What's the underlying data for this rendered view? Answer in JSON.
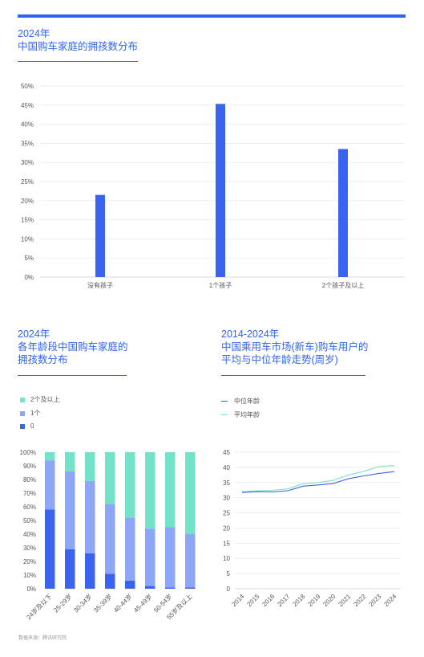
{
  "colors": {
    "accent": "#2f63f2",
    "seg_0": "#3a64f0",
    "seg_1": "#8ea6f7",
    "seg_2plus": "#72e3c9",
    "median": "#3d63e6",
    "average": "#7fe3c6",
    "grid": "#e6e6e6",
    "tick": "#555555"
  },
  "source_text": "数据来源：腾讯研究院",
  "chart_data": [
    {
      "type": "bar",
      "title_year": "2024年",
      "title": "中国购车家庭的拥孩数分布",
      "categories": [
        "没有孩子",
        "1个孩子",
        "2个孩子及以上"
      ],
      "values": [
        21.5,
        45.3,
        33.5
      ],
      "ylim": [
        0,
        50
      ],
      "yticks": [
        "0%",
        "5%",
        "10%",
        "15%",
        "20%",
        "25%",
        "30%",
        "35%",
        "40%",
        "45%",
        "50%"
      ],
      "grid": true
    },
    {
      "type": "bar",
      "stacked": true,
      "title_year": "2024年",
      "title_lines": [
        "各年龄段中国购车家庭的",
        "拥孩数分布"
      ],
      "categories": [
        "24岁及以下",
        "25-29岁",
        "30-34岁",
        "35-39岁",
        "40-44岁",
        "45-49岁",
        "50-54岁",
        "55岁及以上"
      ],
      "legend": [
        "2个及以上",
        "1个",
        "0"
      ],
      "series": [
        {
          "name": "0",
          "values": [
            58,
            29,
            26,
            11,
            6,
            2,
            1,
            1
          ]
        },
        {
          "name": "1个",
          "values": [
            36,
            57,
            53,
            51,
            46,
            42,
            44,
            39
          ]
        },
        {
          "name": "2个及以上",
          "values": [
            6,
            14,
            21,
            38,
            48,
            56,
            55,
            60
          ]
        }
      ],
      "ylim": [
        0,
        100
      ],
      "yticks": [
        "0%",
        "10%",
        "20%",
        "30%",
        "40%",
        "50%",
        "60%",
        "70%",
        "80%",
        "90%",
        "100%"
      ]
    },
    {
      "type": "line",
      "title_year": "2014-2024年",
      "title_lines": [
        "中国乘用车市场(新车)购车用户的",
        "平均与中位年龄走势(周岁)"
      ],
      "x": [
        "2014",
        "2015",
        "2016",
        "2017",
        "2018",
        "2019",
        "2020",
        "2021",
        "2022",
        "2023",
        "2024"
      ],
      "series": [
        {
          "name": "中位年龄",
          "values": [
            31.7,
            32.0,
            31.9,
            32.3,
            33.8,
            34.2,
            34.7,
            36.3,
            37.2,
            38.0,
            38.6
          ]
        },
        {
          "name": "平均年龄",
          "values": [
            32.0,
            32.3,
            32.4,
            32.9,
            34.6,
            35.0,
            35.7,
            37.5,
            38.7,
            40.3,
            40.6
          ]
        }
      ],
      "ylim": [
        0,
        45
      ],
      "yticks": [
        "0",
        "5",
        "10",
        "15",
        "20",
        "25",
        "30",
        "35",
        "40",
        "45"
      ],
      "grid": true
    }
  ]
}
